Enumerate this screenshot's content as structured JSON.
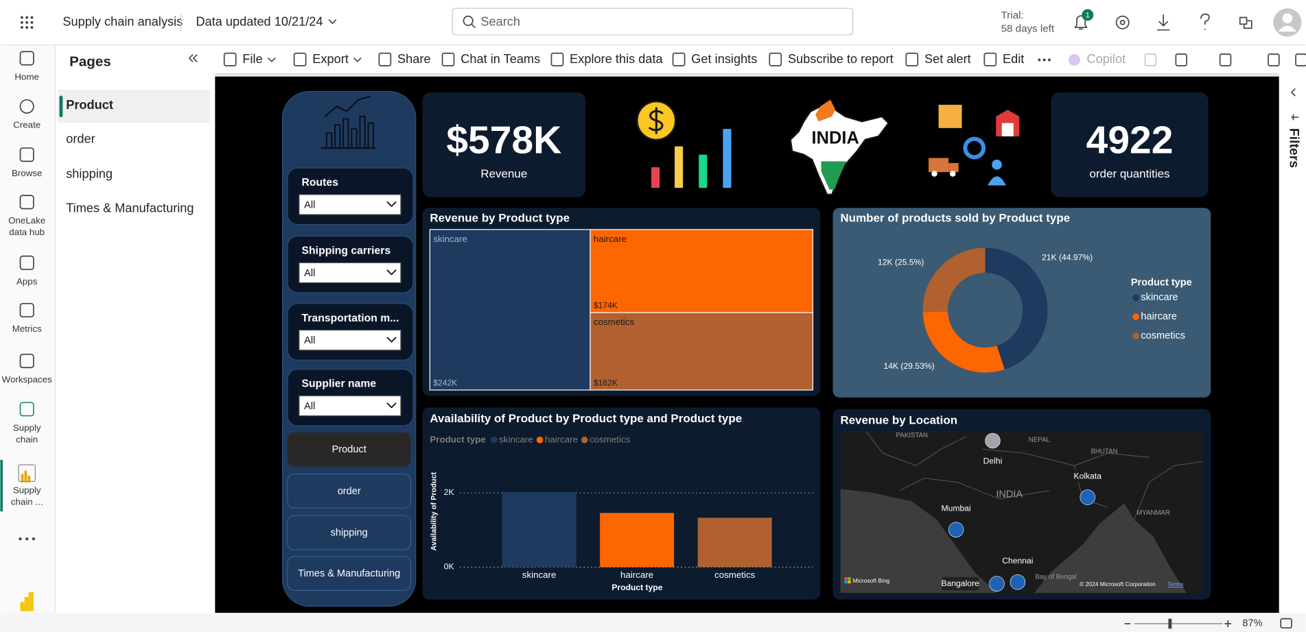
{
  "top_bar": {
    "app_title": "Supply chain analysis",
    "data_updated": "Data updated 10/21/24",
    "search": "Search",
    "trial": "Trial:",
    "trial_days": "58 days left",
    "notifications": "1"
  },
  "nav": {
    "items": [
      {
        "label": [
          "Home"
        ]
      },
      {
        "label": [
          "Create"
        ]
      },
      {
        "label": [
          "Browse"
        ]
      },
      {
        "label": [
          "OneLake",
          "data hub"
        ]
      },
      {
        "label": [
          "Apps"
        ]
      },
      {
        "label": [
          "Metrics"
        ]
      },
      {
        "label": [
          "Workspaces"
        ]
      },
      {
        "label": [
          "Supply",
          "chain"
        ]
      },
      {
        "label": [
          "Supply",
          "chain ..."
        ]
      }
    ],
    "brand": "Power BI"
  },
  "pages": {
    "title": "Pages",
    "items": [
      "Product",
      "order",
      "shipping",
      "Times & Manufacturing"
    ]
  },
  "toolbar": {
    "items": [
      "File",
      "Export",
      "Share",
      "Chat in Teams",
      "Explore this data",
      "Get insights",
      "Subscribe to report",
      "Set alert",
      "Edit",
      "Copilot"
    ]
  },
  "filters_pane": {
    "title": "Filters"
  },
  "status_bar": {
    "zoom": "87%"
  },
  "report": {
    "slicers": [
      {
        "title": "Routes",
        "value": "All"
      },
      {
        "title": "Shipping carriers",
        "value": "All"
      },
      {
        "title": "Transportation m...",
        "value": "All"
      },
      {
        "title": "Supplier name",
        "value": "All"
      }
    ],
    "buttons": [
      "Product",
      "order",
      "shipping",
      "Times & Manufacturing"
    ],
    "kpis": [
      {
        "value": "$578K",
        "label": "Revenue"
      },
      {
        "value": "4922",
        "label": "order quantities"
      }
    ],
    "india_icon_label": "INDIA",
    "treemap": {
      "type": "treemap",
      "title": "Revenue by Product type",
      "categories": [
        "skincare",
        "haircare",
        "cosmetics"
      ],
      "values": [
        242000,
        174000,
        162000
      ],
      "value_labels": [
        "$242K",
        "$174K",
        "$162K"
      ],
      "colors": [
        "#1f3a5f",
        "#fe6600",
        "#b0612f"
      ]
    },
    "donut": {
      "type": "pie",
      "title": "Number of products sold by Product type",
      "legend_title": "Product type",
      "categories": [
        "skincare",
        "haircare",
        "cosmetics"
      ],
      "values": [
        44.97,
        29.53,
        25.5
      ],
      "value_labels": [
        "21K (44.97%)",
        "14K (29.53%)",
        "12K (25.5%)"
      ],
      "colors": [
        "#1f3a5f",
        "#fe6600",
        "#b0612f"
      ],
      "legend": "right"
    },
    "bar": {
      "type": "bar",
      "title": "Availability of Product by Product type and Product type",
      "legend_title": "Product type",
      "categories": [
        "skincare",
        "haircare",
        "cosmetics"
      ],
      "values": [
        2020,
        1460,
        1330
      ],
      "colors": [
        "#1f3a5f",
        "#fe6600",
        "#b0612f"
      ],
      "ylim": [
        0,
        2800
      ],
      "yticks": [
        {
          "value": 0,
          "label": "0K"
        },
        {
          "value": 2000,
          "label": "2K"
        }
      ],
      "x_label": "Product type",
      "y_label": "Availability of Product",
      "grid": true
    },
    "map": {
      "title": "Revenue by Location",
      "cities": [
        "Delhi",
        "Kolkata",
        "Mumbai",
        "Chennai",
        "Bangalore"
      ],
      "map_labels": [
        "PAKISTAN",
        "NEPAL",
        "BHUTAN",
        "INDIA",
        "MYANMAR",
        "Bay of Bengal"
      ],
      "attribution": "Microsoft Bing",
      "copyright": "© 2024 Microsoft Corporation",
      "terms": "Terms"
    }
  }
}
